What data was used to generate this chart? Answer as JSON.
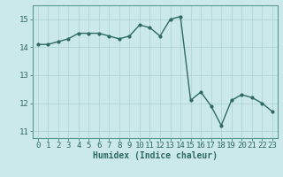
{
  "x": [
    0,
    1,
    2,
    3,
    4,
    5,
    6,
    7,
    8,
    9,
    10,
    11,
    12,
    13,
    14,
    15,
    16,
    17,
    18,
    19,
    20,
    21,
    22,
    23
  ],
  "y": [
    14.1,
    14.1,
    14.2,
    14.3,
    14.5,
    14.5,
    14.5,
    14.4,
    14.3,
    14.4,
    14.8,
    14.7,
    14.4,
    15.0,
    15.1,
    12.1,
    12.4,
    11.9,
    11.2,
    12.1,
    12.3,
    12.2,
    12.0,
    11.7
  ],
  "line_color": "#2e6b5e",
  "marker": "o",
  "marker_size": 2.0,
  "line_width": 1.0,
  "background_color": "#cce9e9",
  "grid_color": "#aad0d0",
  "xlabel": "Humidex (Indice chaleur)",
  "xlim": [
    -0.5,
    23.5
  ],
  "ylim": [
    10.75,
    15.5
  ],
  "yticks": [
    11,
    12,
    13,
    14,
    15
  ],
  "xticks": [
    0,
    1,
    2,
    3,
    4,
    5,
    6,
    7,
    8,
    9,
    10,
    11,
    12,
    13,
    14,
    15,
    16,
    17,
    18,
    19,
    20,
    21,
    22,
    23
  ],
  "tick_color": "#2e6b5e",
  "label_color": "#2e6b5e",
  "xlabel_fontsize": 7,
  "tick_fontsize": 6.5,
  "spine_color": "#5a9a8a"
}
